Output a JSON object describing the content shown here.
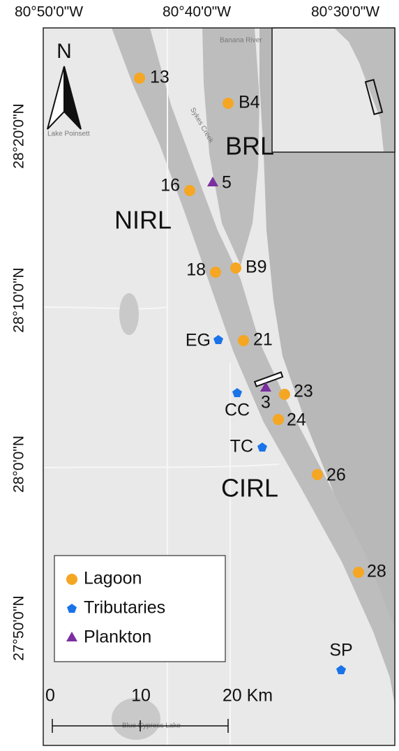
{
  "graticule": {
    "top": [
      "80°50'0\"W",
      "80°40'0\"W",
      "80°30'0\"W"
    ],
    "left": [
      "28°20'0\"N",
      "28°10'0\"N",
      "28°0'0\"N",
      "27°50'0\"N"
    ]
  },
  "north_arrow": "N",
  "regions": [
    "BRL",
    "NIRL",
    "CIRL"
  ],
  "basemap_labels": [
    "Banana River",
    "Sykes Creek",
    "Lake Poinsett",
    "Blue Cypress Lake"
  ],
  "stations": [
    "13",
    "B4",
    "5",
    "16",
    "18",
    "B9",
    "21",
    "EG",
    "3",
    "23",
    "CC",
    "24",
    "TC",
    "26",
    "28",
    "SP"
  ],
  "legend": [
    "Lagoon",
    "Tributaries",
    "Plankton"
  ],
  "scale_bar": [
    "0",
    "10",
    "20 Km"
  ]
}
